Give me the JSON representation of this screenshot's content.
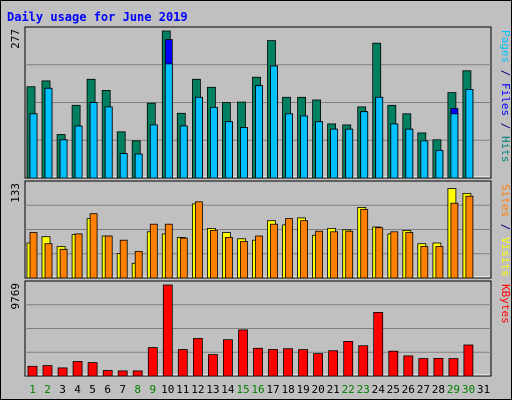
{
  "chart_data": {
    "type": "bar",
    "title": "Daily usage for June 2019",
    "categories": [
      "1",
      "2",
      "3",
      "4",
      "5",
      "6",
      "7",
      "8",
      "9",
      "10",
      "11",
      "12",
      "13",
      "14",
      "15",
      "16",
      "17",
      "18",
      "19",
      "20",
      "21",
      "22",
      "23",
      "24",
      "25",
      "26",
      "27",
      "28",
      "29",
      "30",
      "31"
    ],
    "weekend_days": [
      "1",
      "2",
      "8",
      "9",
      "15",
      "16",
      "22",
      "23",
      "29",
      "30"
    ],
    "panels": [
      {
        "id": "hits-files-pages",
        "ymax": 277,
        "ymax_label": "277",
        "side_labels": [
          {
            "text": "Pages",
            "color": "#00c0ff"
          },
          {
            "text": " / ",
            "color": "#000080"
          },
          {
            "text": "Files",
            "color": "#0000ff"
          },
          {
            "text": " / ",
            "color": "#000080"
          },
          {
            "text": "Hits",
            "color": "#008080"
          }
        ],
        "series": [
          {
            "name": "Hits",
            "color": "#008060",
            "values": [
              172,
              183,
              82,
              137,
              186,
              165,
              87,
              70,
              141,
              277,
              122,
              186,
              171,
              142,
              143,
              190,
              259,
              152,
              152,
              147,
              102,
              100,
              134,
              254,
              137,
              121,
              85,
              72,
              161,
              202
            ]
          },
          {
            "name": "Files",
            "color": "#0000ff",
            "values": [
              121,
              169,
              72,
              98,
              142,
              134,
              46,
              45,
              100,
              261,
              98,
              152,
              133,
              106,
              95,
              174,
              211,
              121,
              117,
              106,
              92,
              92,
              125,
              152,
              102,
              92,
              70,
              52,
              131,
              167
            ]
          },
          {
            "name": "Pages",
            "color": "#00c0ff",
            "values": [
              121,
              169,
              72,
              98,
              142,
              134,
              46,
              45,
              100,
              215,
              98,
              152,
              133,
              106,
              95,
              174,
              211,
              121,
              117,
              106,
              92,
              92,
              125,
              152,
              102,
              92,
              70,
              52,
              121,
              167
            ]
          }
        ]
      },
      {
        "id": "visits-sites",
        "ymax": 133,
        "ymax_label": "133",
        "side_labels": [
          {
            "text": "Sites",
            "color": "#ff8000"
          },
          {
            "text": " / ",
            "color": "#000080"
          },
          {
            "text": "Visits",
            "color": "#ffff00"
          }
        ],
        "series": [
          {
            "name": "Visits",
            "color": "#ffff00",
            "values": [
              50,
              59,
              45,
              62,
              85,
              60,
              35,
              21,
              66,
              63,
              58,
              106,
              71,
              65,
              56,
              54,
              82,
              76,
              86,
              61,
              71,
              69,
              101,
              73,
              63,
              68,
              49,
              50,
              128,
              121
            ]
          },
          {
            "name": "Sites",
            "color": "#ff8000",
            "values": [
              65,
              49,
              41,
              63,
              92,
              60,
              54,
              38,
              77,
              77,
              57,
              109,
              68,
              58,
              52,
              60,
              77,
              85,
              82,
              67,
              66,
              67,
              98,
              72,
              66,
              65,
              45,
              45,
              107,
              117
            ]
          }
        ]
      },
      {
        "id": "kbytes",
        "ymax": 9769,
        "ymax_label": "9769",
        "side_labels": [
          {
            "text": "KBytes",
            "color": "#ff0000"
          }
        ],
        "series": [
          {
            "name": "KBytes",
            "color": "#ff0000",
            "values": [
              1038,
              1113,
              868,
              1553,
              1440,
              593,
              549,
              549,
              3050,
              9769,
              2849,
              4021,
              2302,
              3902,
              4950,
              2976,
              2849,
              2932,
              2834,
              2401,
              2717,
              3719,
              3249,
              6830,
              2660,
              2160,
              1867,
              1890,
              1867,
              3331
            ]
          }
        ]
      }
    ],
    "colors": {
      "title": "#0000ff",
      "weekday_label": "#000000",
      "weekend_label": "#008000",
      "plot_bg": "#c0c0c0",
      "gridline": "#808080"
    }
  }
}
